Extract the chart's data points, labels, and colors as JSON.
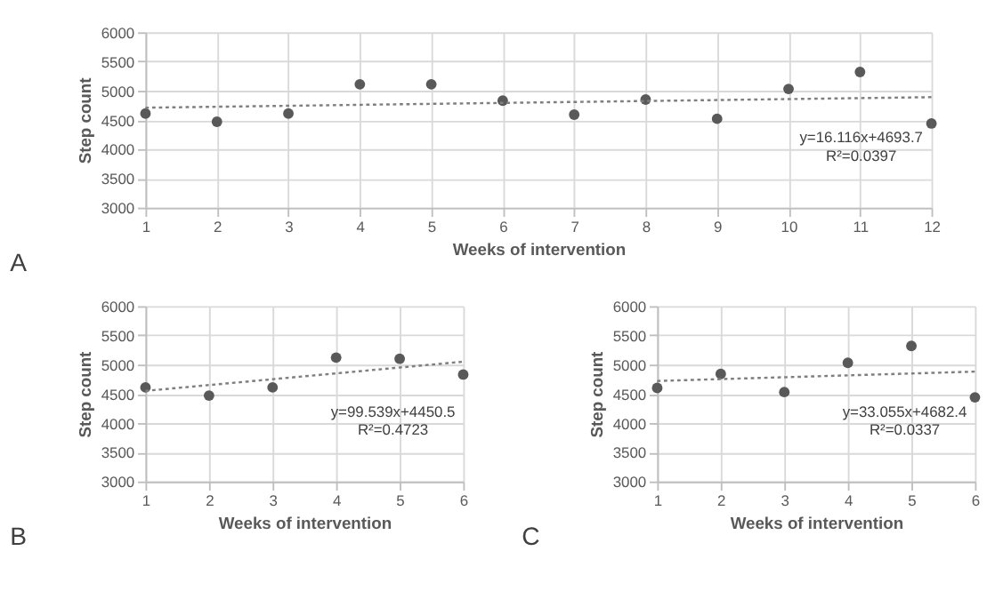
{
  "chart_data": [
    {
      "type": "scatter",
      "title": "A",
      "xlabel": "Weeks of intervention",
      "ylabel": "Step count",
      "xlim": [
        1,
        12
      ],
      "xticks": [
        1,
        2,
        3,
        4,
        5,
        6,
        7,
        8,
        9,
        10,
        11,
        12
      ],
      "ylim": [
        3000,
        6000
      ],
      "yticks": [
        3000,
        3500,
        4000,
        4500,
        5000,
        5500,
        6000
      ],
      "grid": true,
      "marker": "circle",
      "series": [
        {
          "color": "#595959",
          "x": [
            1,
            2,
            3,
            4,
            5,
            6,
            7,
            8,
            9,
            10,
            11,
            12
          ],
          "values": [
            4610,
            4470,
            4610,
            5110,
            5110,
            4830,
            4590,
            4850,
            4520,
            5030,
            5320,
            4440
          ]
        },
        {
          "type": "line",
          "line_style": "dotted",
          "marker": "none",
          "color": "#7f7f7f",
          "x": [
            1,
            12
          ],
          "values": [
            4710,
            4890
          ]
        }
      ],
      "annotations": [
        "y=16.116x+4693.7",
        "R²=0.0397"
      ]
    },
    {
      "type": "scatter",
      "title": "B",
      "xlabel": "Weeks of intervention",
      "ylabel": "Step count",
      "xlim": [
        1,
        6
      ],
      "xticks": [
        1,
        2,
        3,
        4,
        5,
        6
      ],
      "ylim": [
        3000,
        6000
      ],
      "yticks": [
        3000,
        3500,
        4000,
        4500,
        5000,
        5500,
        6000
      ],
      "grid": true,
      "marker": "circle",
      "series": [
        {
          "color": "#595959",
          "x": [
            1,
            2,
            3,
            4,
            5,
            6
          ],
          "values": [
            4610,
            4470,
            4610,
            5120,
            5100,
            4830
          ]
        },
        {
          "type": "line",
          "line_style": "dotted",
          "marker": "none",
          "color": "#7f7f7f",
          "x": [
            1,
            6
          ],
          "values": [
            4550,
            5050
          ]
        }
      ],
      "annotations": [
        "y=99.539x+4450.5",
        "R²=0.4723"
      ]
    },
    {
      "type": "scatter",
      "title": "C",
      "xlabel": "Weeks of intervention",
      "ylabel": "Step count",
      "xlim": [
        1,
        6
      ],
      "xticks": [
        1,
        2,
        3,
        4,
        5,
        6
      ],
      "ylim": [
        3000,
        6000
      ],
      "yticks": [
        3000,
        3500,
        4000,
        4500,
        5000,
        5500,
        6000
      ],
      "grid": true,
      "marker": "circle",
      "series": [
        {
          "color": "#595959",
          "x": [
            1,
            2,
            3,
            4,
            5,
            6
          ],
          "values": [
            4600,
            4840,
            4530,
            5030,
            5320,
            4440
          ]
        },
        {
          "type": "line",
          "line_style": "dotted",
          "marker": "none",
          "color": "#7f7f7f",
          "x": [
            1,
            6
          ],
          "values": [
            4720,
            4880
          ]
        }
      ],
      "annotations": [
        "y=33.055x+4682.4",
        "R²=0.0337"
      ]
    }
  ]
}
